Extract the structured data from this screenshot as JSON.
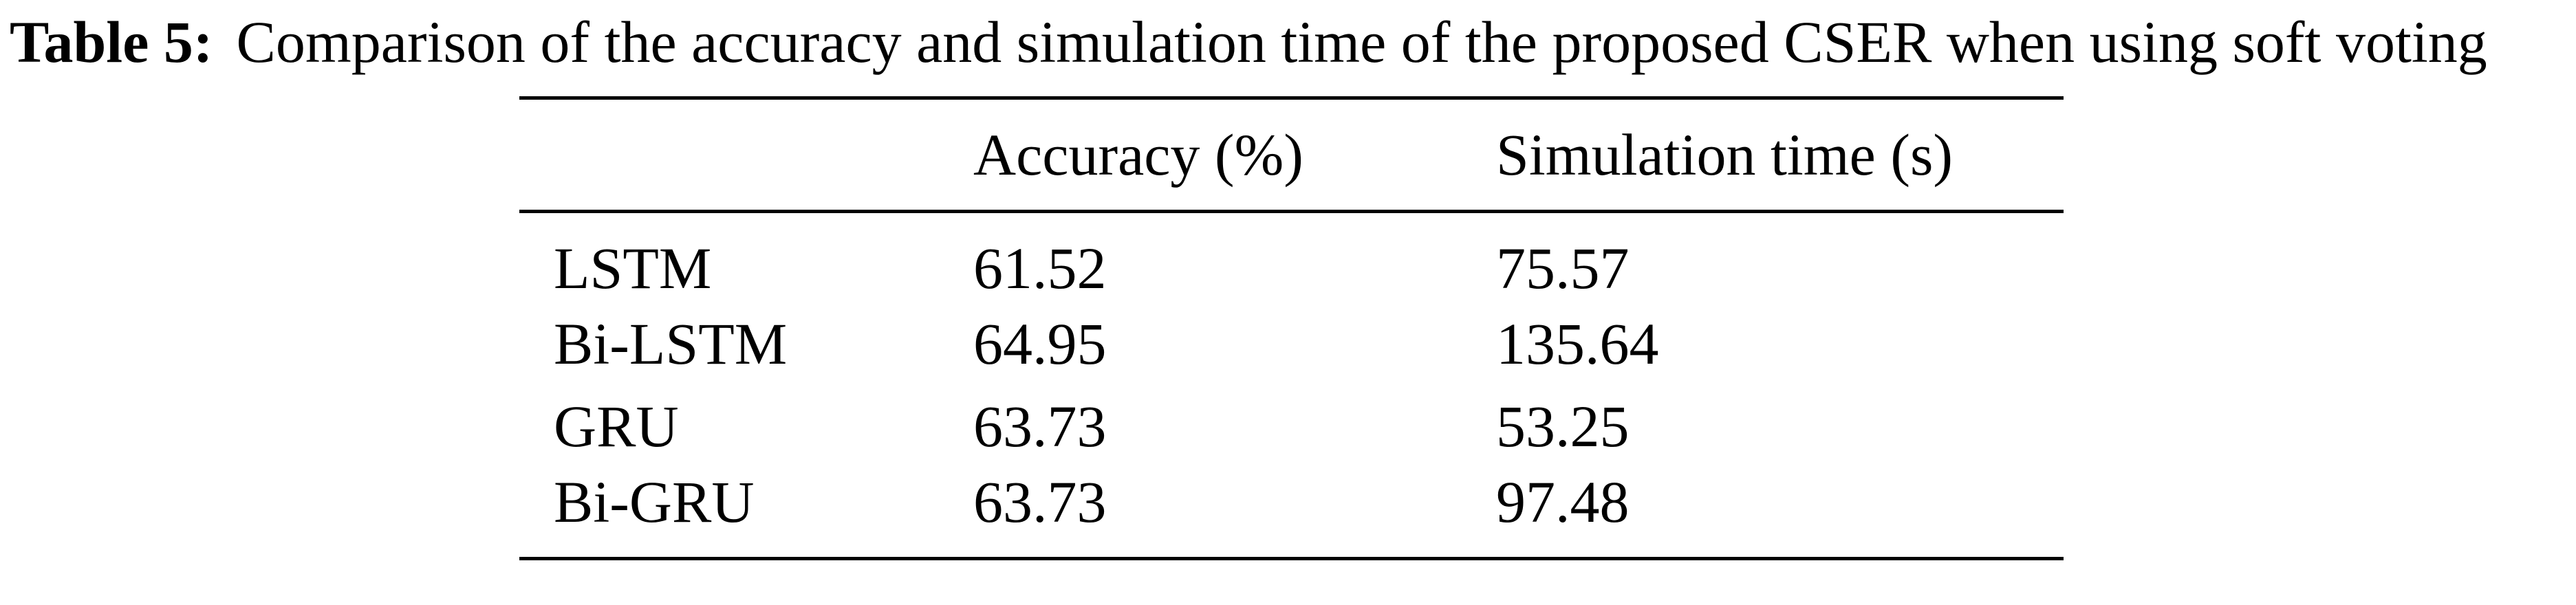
{
  "caption": {
    "label": "Table 5:",
    "text": "Comparison of the accuracy and simulation time of the proposed CSER when using soft voting"
  },
  "table": {
    "headers": [
      "",
      "Accuracy (%)",
      "Simulation time (s)"
    ],
    "rows": [
      {
        "model": "LSTM",
        "accuracy": "61.52",
        "time": "75.57"
      },
      {
        "model": "Bi-LSTM",
        "accuracy": "64.95",
        "time": "135.64"
      },
      {
        "model": "GRU",
        "accuracy": "63.73",
        "time": "53.25"
      },
      {
        "model": "Bi-GRU",
        "accuracy": "63.73",
        "time": "97.48"
      }
    ]
  }
}
